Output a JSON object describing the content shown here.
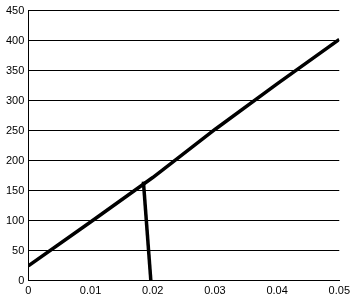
{
  "chart_data": {
    "type": "line",
    "series": [
      {
        "x": [
          0,
          0.01,
          0.02,
          0.03,
          0.04,
          0.05
        ],
        "values": [
          25,
          98,
          172,
          252,
          328,
          402
        ],
        "color": "#000000"
      },
      {
        "x": [
          0.0185,
          0.0197
        ],
        "values": [
          165,
          0
        ],
        "color": "#000000"
      }
    ],
    "xlim": [
      0,
      0.05
    ],
    "xticks": [
      0,
      0.01,
      0.02,
      0.03,
      0.04,
      0.05
    ],
    "ylim": [
      0,
      450
    ],
    "yticks": [
      0,
      50,
      100,
      150,
      200,
      250,
      300,
      350,
      400,
      450
    ],
    "grid": "y"
  }
}
